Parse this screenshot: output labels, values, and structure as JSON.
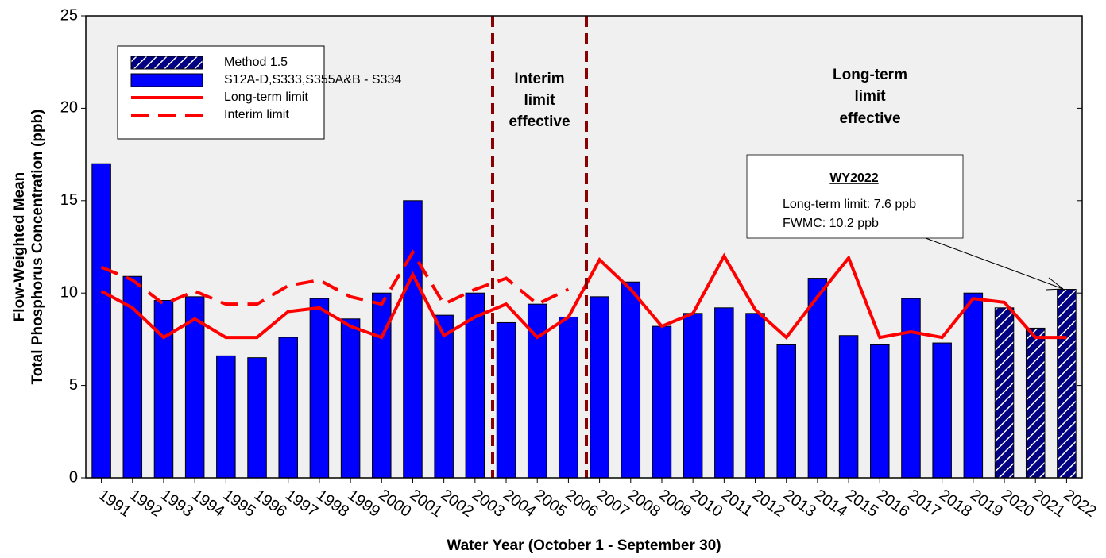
{
  "chart_data": {
    "type": "bar",
    "x_label": "Water Year (October 1 - September 30)",
    "y_label": [
      "Flow-Weighted Mean",
      "Total Phosphorus Concentration (ppb)"
    ],
    "categories": [
      "1991",
      "1992",
      "1993",
      "1994",
      "1995",
      "1996",
      "1997",
      "1998",
      "1999",
      "2000",
      "2001",
      "2002",
      "2003",
      "2004",
      "2005",
      "2006",
      "2007",
      "2008",
      "2009",
      "2010",
      "2011",
      "2012",
      "2013",
      "2014",
      "2015",
      "2016",
      "2017",
      "2018",
      "2019",
      "2020",
      "2021",
      "2022"
    ],
    "series": [
      {
        "name": "Method 1.5",
        "kind": "bar",
        "color": "#000080",
        "hatch": true,
        "values": [
          null,
          null,
          null,
          null,
          null,
          null,
          null,
          null,
          null,
          null,
          null,
          null,
          null,
          null,
          null,
          null,
          null,
          null,
          null,
          null,
          null,
          null,
          null,
          null,
          null,
          null,
          null,
          null,
          null,
          9.2,
          8.1,
          10.2
        ]
      },
      {
        "name": "S12A-D,S333,S355A&B - S334",
        "kind": "bar",
        "color": "#0000ff",
        "values": [
          17.0,
          10.9,
          9.6,
          9.8,
          6.6,
          6.5,
          7.6,
          9.7,
          8.6,
          10.0,
          15.0,
          8.8,
          10.0,
          8.4,
          9.4,
          8.7,
          9.8,
          10.6,
          8.2,
          8.9,
          9.2,
          8.9,
          7.2,
          10.8,
          7.7,
          7.2,
          9.7,
          7.3,
          10.0,
          null,
          null,
          null
        ]
      },
      {
        "name": "Long-term limit",
        "kind": "line",
        "color": "#ff0000",
        "dash": false,
        "values": [
          10.1,
          9.2,
          7.6,
          8.6,
          7.6,
          7.6,
          9.0,
          9.2,
          8.2,
          7.6,
          11.0,
          7.7,
          8.7,
          9.4,
          7.6,
          8.7,
          11.8,
          10.2,
          8.2,
          8.9,
          12.0,
          9.1,
          7.6,
          9.8,
          11.9,
          7.6,
          7.9,
          7.6,
          9.7,
          9.5,
          7.6,
          7.6
        ]
      },
      {
        "name": "Interim limit",
        "kind": "line",
        "color": "#ff0000",
        "dash": true,
        "values": [
          11.4,
          10.7,
          9.4,
          10.1,
          9.4,
          9.4,
          10.4,
          10.7,
          9.8,
          9.4,
          12.2,
          9.4,
          10.2,
          10.8,
          9.4,
          10.2,
          null,
          null,
          null,
          null,
          null,
          null,
          null,
          null,
          null,
          null,
          null,
          null,
          null,
          null,
          null,
          null
        ]
      }
    ],
    "ylim": [
      0,
      25
    ],
    "yticks": [
      0,
      5,
      10,
      15,
      20,
      25
    ],
    "annotations": [
      {
        "lines": [
          "Interim",
          "limit",
          "effective"
        ]
      },
      {
        "lines": [
          "Long-term",
          "limit",
          "effective"
        ]
      }
    ],
    "callout": {
      "title": "WY2022",
      "lines": [
        "Long-term limit: 7.6 ppb",
        "FWMC: 10.2 ppb"
      ]
    }
  }
}
